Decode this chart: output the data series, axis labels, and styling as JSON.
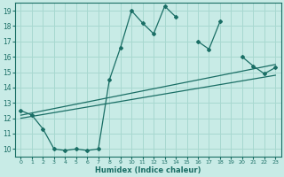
{
  "xlabel": "Humidex (Indice chaleur)",
  "bg_color": "#c8ebe6",
  "line_color": "#1a6e65",
  "grid_color": "#a8d8d0",
  "xlim": [
    -0.5,
    23.5
  ],
  "ylim": [
    9.5,
    19.5
  ],
  "xticks": [
    0,
    1,
    2,
    3,
    4,
    5,
    6,
    7,
    8,
    9,
    10,
    11,
    12,
    13,
    14,
    15,
    16,
    17,
    18,
    19,
    20,
    21,
    22,
    23
  ],
  "yticks": [
    10,
    11,
    12,
    13,
    14,
    15,
    16,
    17,
    18,
    19
  ],
  "main_line": {
    "segments": [
      {
        "x": [
          0,
          1,
          2,
          3,
          4,
          5,
          6,
          7,
          8,
          9,
          10,
          11,
          12,
          13,
          14
        ],
        "y": [
          12.5,
          12.2,
          11.3,
          10.0,
          9.9,
          10.0,
          9.9,
          10.0,
          14.5,
          16.6,
          19.0,
          18.2,
          17.5,
          19.3,
          18.6
        ]
      },
      {
        "x": [
          16,
          17,
          18
        ],
        "y": [
          17.0,
          16.5,
          18.3
        ]
      },
      {
        "x": [
          20,
          21,
          22,
          23
        ],
        "y": [
          16.0,
          15.4,
          14.9,
          15.3
        ]
      }
    ]
  },
  "trend_lines": [
    {
      "x": [
        0,
        23
      ],
      "y": [
        12.2,
        15.5
      ]
    },
    {
      "x": [
        0,
        23
      ],
      "y": [
        12.0,
        14.8
      ]
    }
  ]
}
